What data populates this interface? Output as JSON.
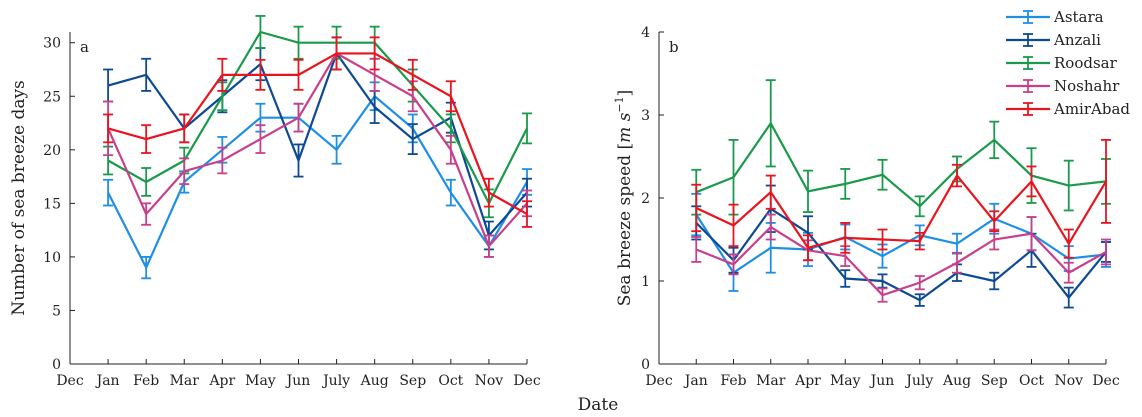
{
  "chart_data": [
    {
      "type": "line",
      "panel_label": "a",
      "ylabel": "Number of sea breeze days",
      "xlabel": "Date",
      "x_ticks": [
        "Dec",
        "Jan",
        "Feb",
        "Mar",
        "Apr",
        "May",
        "Jun",
        "July",
        "Aug",
        "Sep",
        "Oct",
        "Nov",
        "Dec"
      ],
      "categories": [
        "Jan",
        "Feb",
        "Mar",
        "Apr",
        "May",
        "Jun",
        "July",
        "Aug",
        "Sep",
        "Oct",
        "Nov",
        "Dec"
      ],
      "ylim": [
        0,
        31
      ],
      "y_ticks": [
        "0",
        "5",
        "10",
        "15",
        "20",
        "25",
        "30"
      ],
      "series": [
        {
          "name": "Astara",
          "color": "#1f8fe6",
          "values": [
            16,
            9,
            17,
            20,
            23,
            23,
            20,
            25,
            22,
            16,
            11,
            17
          ],
          "errors": [
            1.2,
            1,
            1,
            1.2,
            1.3,
            1.3,
            1.3,
            1.3,
            1.3,
            1.2,
            1,
            1.2
          ]
        },
        {
          "name": "Anzali",
          "color": "#0d4a94",
          "values": [
            26,
            27,
            22,
            25,
            28,
            19,
            29,
            24,
            21,
            23,
            12,
            16
          ],
          "errors": [
            1.5,
            1.5,
            1.3,
            1.5,
            1.5,
            1.5,
            1.5,
            1.5,
            1.4,
            1.4,
            1.3,
            1.3
          ]
        },
        {
          "name": "Roodsar",
          "color": "#1a9a4a",
          "values": [
            19,
            17,
            19,
            25,
            31,
            30,
            30,
            30,
            26,
            22,
            15,
            22
          ],
          "errors": [
            1.3,
            1.3,
            1.2,
            1.3,
            1.5,
            1.5,
            1.5,
            1.5,
            1.5,
            1.3,
            1.3,
            1.4
          ]
        },
        {
          "name": "Noshahr",
          "color": "#c8408c",
          "values": [
            22,
            14,
            18,
            19,
            21,
            23,
            29,
            27,
            25,
            20,
            11,
            15
          ],
          "errors": [
            2.5,
            1,
            1.2,
            1.2,
            1.3,
            1.3,
            1.5,
            1.5,
            1.4,
            1.3,
            1,
            1.2
          ]
        },
        {
          "name": "AmirAbad",
          "color": "#e8141e",
          "values": [
            22,
            21,
            22,
            27,
            27,
            27,
            29,
            29,
            27,
            25,
            16,
            14
          ],
          "errors": [
            1.3,
            1.3,
            1.3,
            1.5,
            1.4,
            1.4,
            1.5,
            1.5,
            1.4,
            1.4,
            1.3,
            1.2
          ]
        }
      ]
    },
    {
      "type": "line",
      "panel_label": "b",
      "ylabel": "Sea breeze speed [m s^-1]",
      "ylabel_parts": {
        "main": "Sea breeze speed [",
        "unit": "m s",
        "exp": "−1",
        "close": "]"
      },
      "xlabel": "Date",
      "x_ticks": [
        "Dec",
        "Jan",
        "Feb",
        "Mar",
        "Apr",
        "May",
        "Jun",
        "July",
        "Aug",
        "Sep",
        "Oct",
        "Nov",
        "Dec"
      ],
      "categories": [
        "Jan",
        "Feb",
        "Mar",
        "Apr",
        "May",
        "Jun",
        "July",
        "Aug",
        "Sep",
        "Oct",
        "Nov",
        "Dec"
      ],
      "ylim": [
        0,
        4
      ],
      "y_ticks": [
        "0",
        "1",
        "2",
        "3",
        "4"
      ],
      "series": [
        {
          "name": "Astara",
          "color": "#1f8fe6",
          "values": [
            1.8,
            1.1,
            1.4,
            1.38,
            1.53,
            1.3,
            1.55,
            1.45,
            1.75,
            1.57,
            1.27,
            1.32
          ],
          "errors": [
            0.25,
            0.22,
            0.3,
            0.2,
            0.15,
            0.14,
            0.12,
            0.12,
            0.18,
            0.2,
            0.15,
            0.15
          ]
        },
        {
          "name": "Anzali",
          "color": "#0d4a94",
          "values": [
            1.7,
            1.25,
            1.87,
            1.58,
            1.03,
            1.0,
            0.77,
            1.1,
            1.0,
            1.37,
            0.8,
            1.35
          ],
          "errors": [
            0.2,
            0.15,
            0.28,
            0.2,
            0.1,
            0.08,
            0.07,
            0.1,
            0.1,
            0.2,
            0.12,
            0.12
          ]
        },
        {
          "name": "Roodsar",
          "color": "#1a9a4a",
          "values": [
            2.07,
            2.25,
            2.9,
            2.08,
            2.17,
            2.28,
            1.9,
            2.35,
            2.7,
            2.27,
            2.15,
            2.2
          ],
          "errors": [
            0.27,
            0.45,
            0.52,
            0.25,
            0.18,
            0.18,
            0.12,
            0.15,
            0.22,
            0.33,
            0.3,
            0.27
          ]
        },
        {
          "name": "Noshahr",
          "color": "#c8408c",
          "values": [
            1.38,
            1.2,
            1.65,
            1.37,
            1.3,
            0.83,
            0.98,
            1.22,
            1.5,
            1.57,
            1.1,
            1.35
          ],
          "errors": [
            0.15,
            0.12,
            0.15,
            0.12,
            0.12,
            0.08,
            0.08,
            0.12,
            0.12,
            0.2,
            0.12,
            0.15
          ]
        },
        {
          "name": "AmirAbad",
          "color": "#e8141e",
          "values": [
            1.88,
            1.67,
            2.07,
            1.4,
            1.52,
            1.5,
            1.48,
            2.27,
            1.72,
            2.2,
            1.45,
            2.2
          ],
          "errors": [
            0.28,
            0.25,
            0.2,
            0.15,
            0.18,
            0.12,
            0.1,
            0.13,
            0.12,
            0.18,
            0.17,
            0.5
          ]
        }
      ]
    }
  ],
  "legend": [
    "Astara",
    "Anzali",
    "Roodsar",
    "Noshahr",
    "AmirAbad"
  ],
  "shared_xlabel": "Date"
}
